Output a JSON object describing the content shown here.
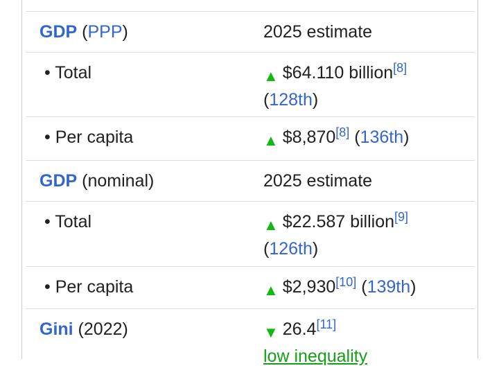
{
  "infobox": {
    "rows": [
      {
        "label": [
          {
            "t": "GDP",
            "s": "bold-link"
          },
          {
            "t": " ("
          },
          {
            "t": "PPP",
            "s": "link"
          },
          {
            "t": ")"
          }
        ],
        "value": [
          [
            {
              "t": "2025 estimate"
            }
          ]
        ]
      },
      {
        "label": [
          {
            "t": "• Total"
          }
        ],
        "value": [
          [
            {
              "t": "▲",
              "s": "up"
            },
            {
              "t": "$64.110 billion"
            },
            {
              "t": "[8]",
              "s": "sup"
            }
          ],
          [
            {
              "t": "("
            },
            {
              "t": "128th",
              "s": "link"
            },
            {
              "t": ")"
            }
          ]
        ]
      },
      {
        "label": [
          {
            "t": "• Per capita"
          }
        ],
        "value": [
          [
            {
              "t": "▲",
              "s": "up"
            },
            {
              "t": "$8,870"
            },
            {
              "t": "[8]",
              "s": "sup"
            },
            {
              "t": " ("
            },
            {
              "t": "136th",
              "s": "link"
            },
            {
              "t": ")"
            }
          ]
        ]
      },
      {
        "label": [
          {
            "t": "GDP",
            "s": "bold-link"
          },
          {
            "t": " (nominal)"
          }
        ],
        "value": [
          [
            {
              "t": "2025 estimate"
            }
          ]
        ]
      },
      {
        "label": [
          {
            "t": "• Total"
          }
        ],
        "value": [
          [
            {
              "t": "▲",
              "s": "up"
            },
            {
              "t": "$22.587 billion"
            },
            {
              "t": "[9]",
              "s": "sup"
            }
          ],
          [
            {
              "t": "("
            },
            {
              "t": "126th",
              "s": "link"
            },
            {
              "t": ")"
            }
          ]
        ]
      },
      {
        "label": [
          {
            "t": "• Per capita"
          }
        ],
        "value": [
          [
            {
              "t": "▲",
              "s": "up"
            },
            {
              "t": "$2,930"
            },
            {
              "t": "[10]",
              "s": "sup"
            },
            {
              "t": " ("
            },
            {
              "t": "139th",
              "s": "link"
            },
            {
              "t": ")"
            }
          ]
        ]
      },
      {
        "label": [
          {
            "t": "Gini",
            "s": "bold-link"
          },
          {
            "t": " (2022)"
          }
        ],
        "value": [
          [
            {
              "t": "▼",
              "s": "down"
            },
            {
              "t": "26.4"
            },
            {
              "t": "[11]",
              "s": "sup"
            }
          ],
          [
            {
              "t": "low inequality",
              "s": "green-link"
            }
          ]
        ]
      }
    ]
  }
}
